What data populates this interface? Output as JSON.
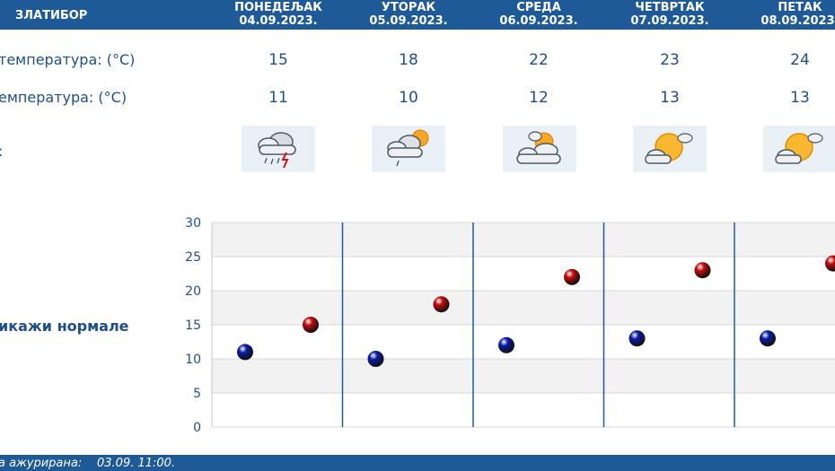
{
  "header": {
    "station": "ЗЛАТИБОР",
    "days": [
      {
        "name": "ПОНЕДЕЉАК",
        "date": "04.09.2023."
      },
      {
        "name": "УТОРАК",
        "date": "05.09.2023."
      },
      {
        "name": "СРЕДА",
        "date": "06.09.2023."
      },
      {
        "name": "ЧЕТВРТАК",
        "date": "07.09.2023."
      },
      {
        "name": "ПЕТАК",
        "date": "08.09.2023."
      }
    ]
  },
  "rows": {
    "max_label": "температура: (°C)",
    "min_label": "емпература: (°C)",
    "weather_label": ":",
    "max_values": [
      "15",
      "18",
      "22",
      "23",
      "24"
    ],
    "min_values": [
      "11",
      "10",
      "12",
      "13",
      "13"
    ],
    "icons": [
      "cloud-rain-thunder-icon",
      "cloud-sun-rain-icon",
      "sun-behind-clouds-icon",
      "mostly-sunny-icon",
      "mostly-sunny-icon"
    ]
  },
  "normals_toggle": "икажи нормале",
  "chart_data": {
    "type": "scatter",
    "categories": [
      "ПОНЕДЕЉАК",
      "УТОРАК",
      "СРЕДА",
      "ЧЕТВРТАК",
      "ПЕТАК"
    ],
    "ylim": [
      0,
      30
    ],
    "yticks": [
      "0",
      "5",
      "10",
      "15",
      "20",
      "25",
      "30"
    ],
    "series": [
      {
        "values": [
          11,
          10,
          12,
          13,
          13
        ],
        "color": "#0a1aa8"
      },
      {
        "values": [
          15,
          18,
          22,
          23,
          24
        ],
        "color": "#c40a0a"
      }
    ],
    "grid": true
  },
  "footer": {
    "updated_label": "а ажурирана:",
    "updated_value": "03.09. 11:00."
  },
  "colors": {
    "header_bg": "#1f5a98",
    "text": "#1f4f8a",
    "band": "#f2f2f2"
  }
}
